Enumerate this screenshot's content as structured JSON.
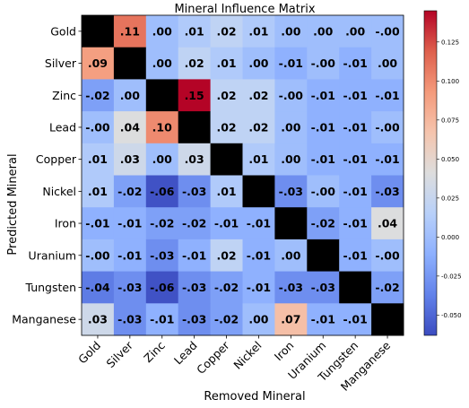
{
  "chart_data": {
    "type": "heatmap",
    "title": "Mineral Influence Matrix",
    "xlabel": "Removed Mineral",
    "ylabel": "Predicted Mineral",
    "x_categories": [
      "Gold",
      "Silver",
      "Zinc",
      "Lead",
      "Copper",
      "Nickel",
      "Iron",
      "Uranium",
      "Tungsten",
      "Manganese"
    ],
    "y_categories": [
      "Gold",
      "Silver",
      "Zinc",
      "Lead",
      "Copper",
      "Nickel",
      "Iron",
      "Uranium",
      "Tungsten",
      "Manganese"
    ],
    "values": [
      [
        null,
        0.11,
        0.0,
        0.01,
        0.02,
        0.01,
        0.0,
        0.0,
        0.0,
        -0.0
      ],
      [
        0.09,
        null,
        0.0,
        0.02,
        0.01,
        0.0,
        -0.01,
        -0.0,
        -0.01,
        0.0
      ],
      [
        -0.02,
        0.0,
        null,
        0.15,
        0.02,
        0.02,
        -0.0,
        -0.01,
        -0.01,
        -0.01
      ],
      [
        -0.0,
        0.04,
        0.1,
        null,
        0.02,
        0.02,
        0.0,
        -0.01,
        -0.01,
        -0.0
      ],
      [
        0.01,
        0.03,
        0.0,
        0.03,
        null,
        0.01,
        0.0,
        -0.01,
        -0.01,
        -0.01
      ],
      [
        0.01,
        -0.02,
        -0.06,
        -0.03,
        0.01,
        null,
        -0.03,
        -0.0,
        -0.01,
        -0.03
      ],
      [
        -0.01,
        -0.01,
        -0.02,
        -0.02,
        -0.01,
        -0.01,
        null,
        -0.02,
        -0.01,
        0.04
      ],
      [
        -0.0,
        -0.01,
        -0.03,
        -0.01,
        0.02,
        -0.01,
        0.0,
        null,
        -0.01,
        -0.0
      ],
      [
        -0.04,
        -0.03,
        -0.06,
        -0.03,
        -0.02,
        -0.01,
        -0.03,
        -0.03,
        null,
        -0.02
      ],
      [
        0.03,
        -0.03,
        -0.01,
        -0.03,
        -0.02,
        0.0,
        0.07,
        -0.01,
        -0.01,
        null
      ]
    ],
    "labels": [
      [
        "",
        ".11",
        ".00",
        ".01",
        ".02",
        ".01",
        ".00",
        ".00",
        ".00",
        "-.00"
      ],
      [
        ".09",
        "",
        ".00",
        ".02",
        ".01",
        ".00",
        "-.01",
        "-.00",
        "-.01",
        ".00"
      ],
      [
        "-.02",
        ".00",
        "",
        ".15",
        ".02",
        ".02",
        "-.00",
        "-.01",
        "-.01",
        "-.01"
      ],
      [
        "-.00",
        ".04",
        ".10",
        "",
        ".02",
        ".02",
        ".00",
        "-.01",
        "-.01",
        "-.00"
      ],
      [
        ".01",
        ".03",
        ".00",
        ".03",
        "",
        ".01",
        ".00",
        "-.01",
        "-.01",
        "-.01"
      ],
      [
        ".01",
        "-.02",
        "-.06",
        "-.03",
        ".01",
        "",
        "-.03",
        "-.00",
        "-.01",
        "-.03"
      ],
      [
        "-.01",
        "-.01",
        "-.02",
        "-.02",
        "-.01",
        "-.01",
        "",
        "-.02",
        "-.01",
        ".04"
      ],
      [
        "-.00",
        "-.01",
        "-.03",
        "-.01",
        ".02",
        "-.01",
        ".00",
        "",
        "-.01",
        "-.00"
      ],
      [
        "-.04",
        "-.03",
        "-.06",
        "-.03",
        "-.02",
        "-.01",
        "-.03",
        "-.03",
        "",
        "-.02"
      ],
      [
        ".03",
        "-.03",
        "-.01",
        "-.03",
        "-.02",
        ".00",
        ".07",
        "-.01",
        "-.01",
        ""
      ]
    ],
    "diagonal_color": "#000000",
    "colormap": "coolwarm",
    "vmin": -0.063,
    "vmax": 0.145,
    "colorbar_ticks": [
      "0.125",
      "0.100",
      "0.075",
      "0.050",
      "0.025",
      "0.000",
      "-0.025",
      "-0.050"
    ],
    "colorbar_tick_values": [
      0.125,
      0.1,
      0.075,
      0.05,
      0.025,
      0.0,
      -0.025,
      -0.05
    ]
  }
}
